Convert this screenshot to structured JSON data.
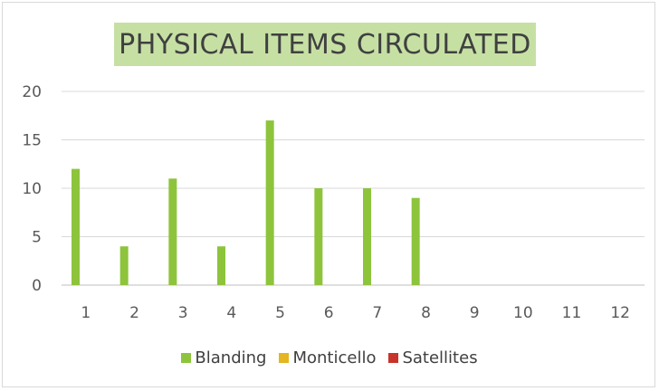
{
  "chart_data": {
    "type": "bar",
    "title": "PHYSICAL ITEMS CIRCULATED",
    "categories": [
      "1",
      "2",
      "3",
      "4",
      "5",
      "6",
      "7",
      "8",
      "9",
      "10",
      "11",
      "12"
    ],
    "series": [
      {
        "name": "Blanding",
        "color": "#8dc43c",
        "values": [
          12,
          4,
          11,
          4,
          17,
          10,
          10,
          9,
          0,
          0,
          0,
          0
        ]
      },
      {
        "name": "Monticello",
        "color": "#e3b622",
        "values": [
          0,
          0,
          0,
          0,
          0,
          0,
          0,
          0,
          0,
          0,
          0,
          0
        ]
      },
      {
        "name": "Satellites",
        "color": "#c8342a",
        "values": [
          0,
          0,
          0,
          0,
          0,
          0,
          0,
          0,
          0,
          0,
          0,
          0
        ]
      }
    ],
    "ylim": [
      0,
      20
    ],
    "yticks": [
      0,
      5,
      10,
      15,
      20
    ],
    "grid": true,
    "legend": "bottom"
  }
}
